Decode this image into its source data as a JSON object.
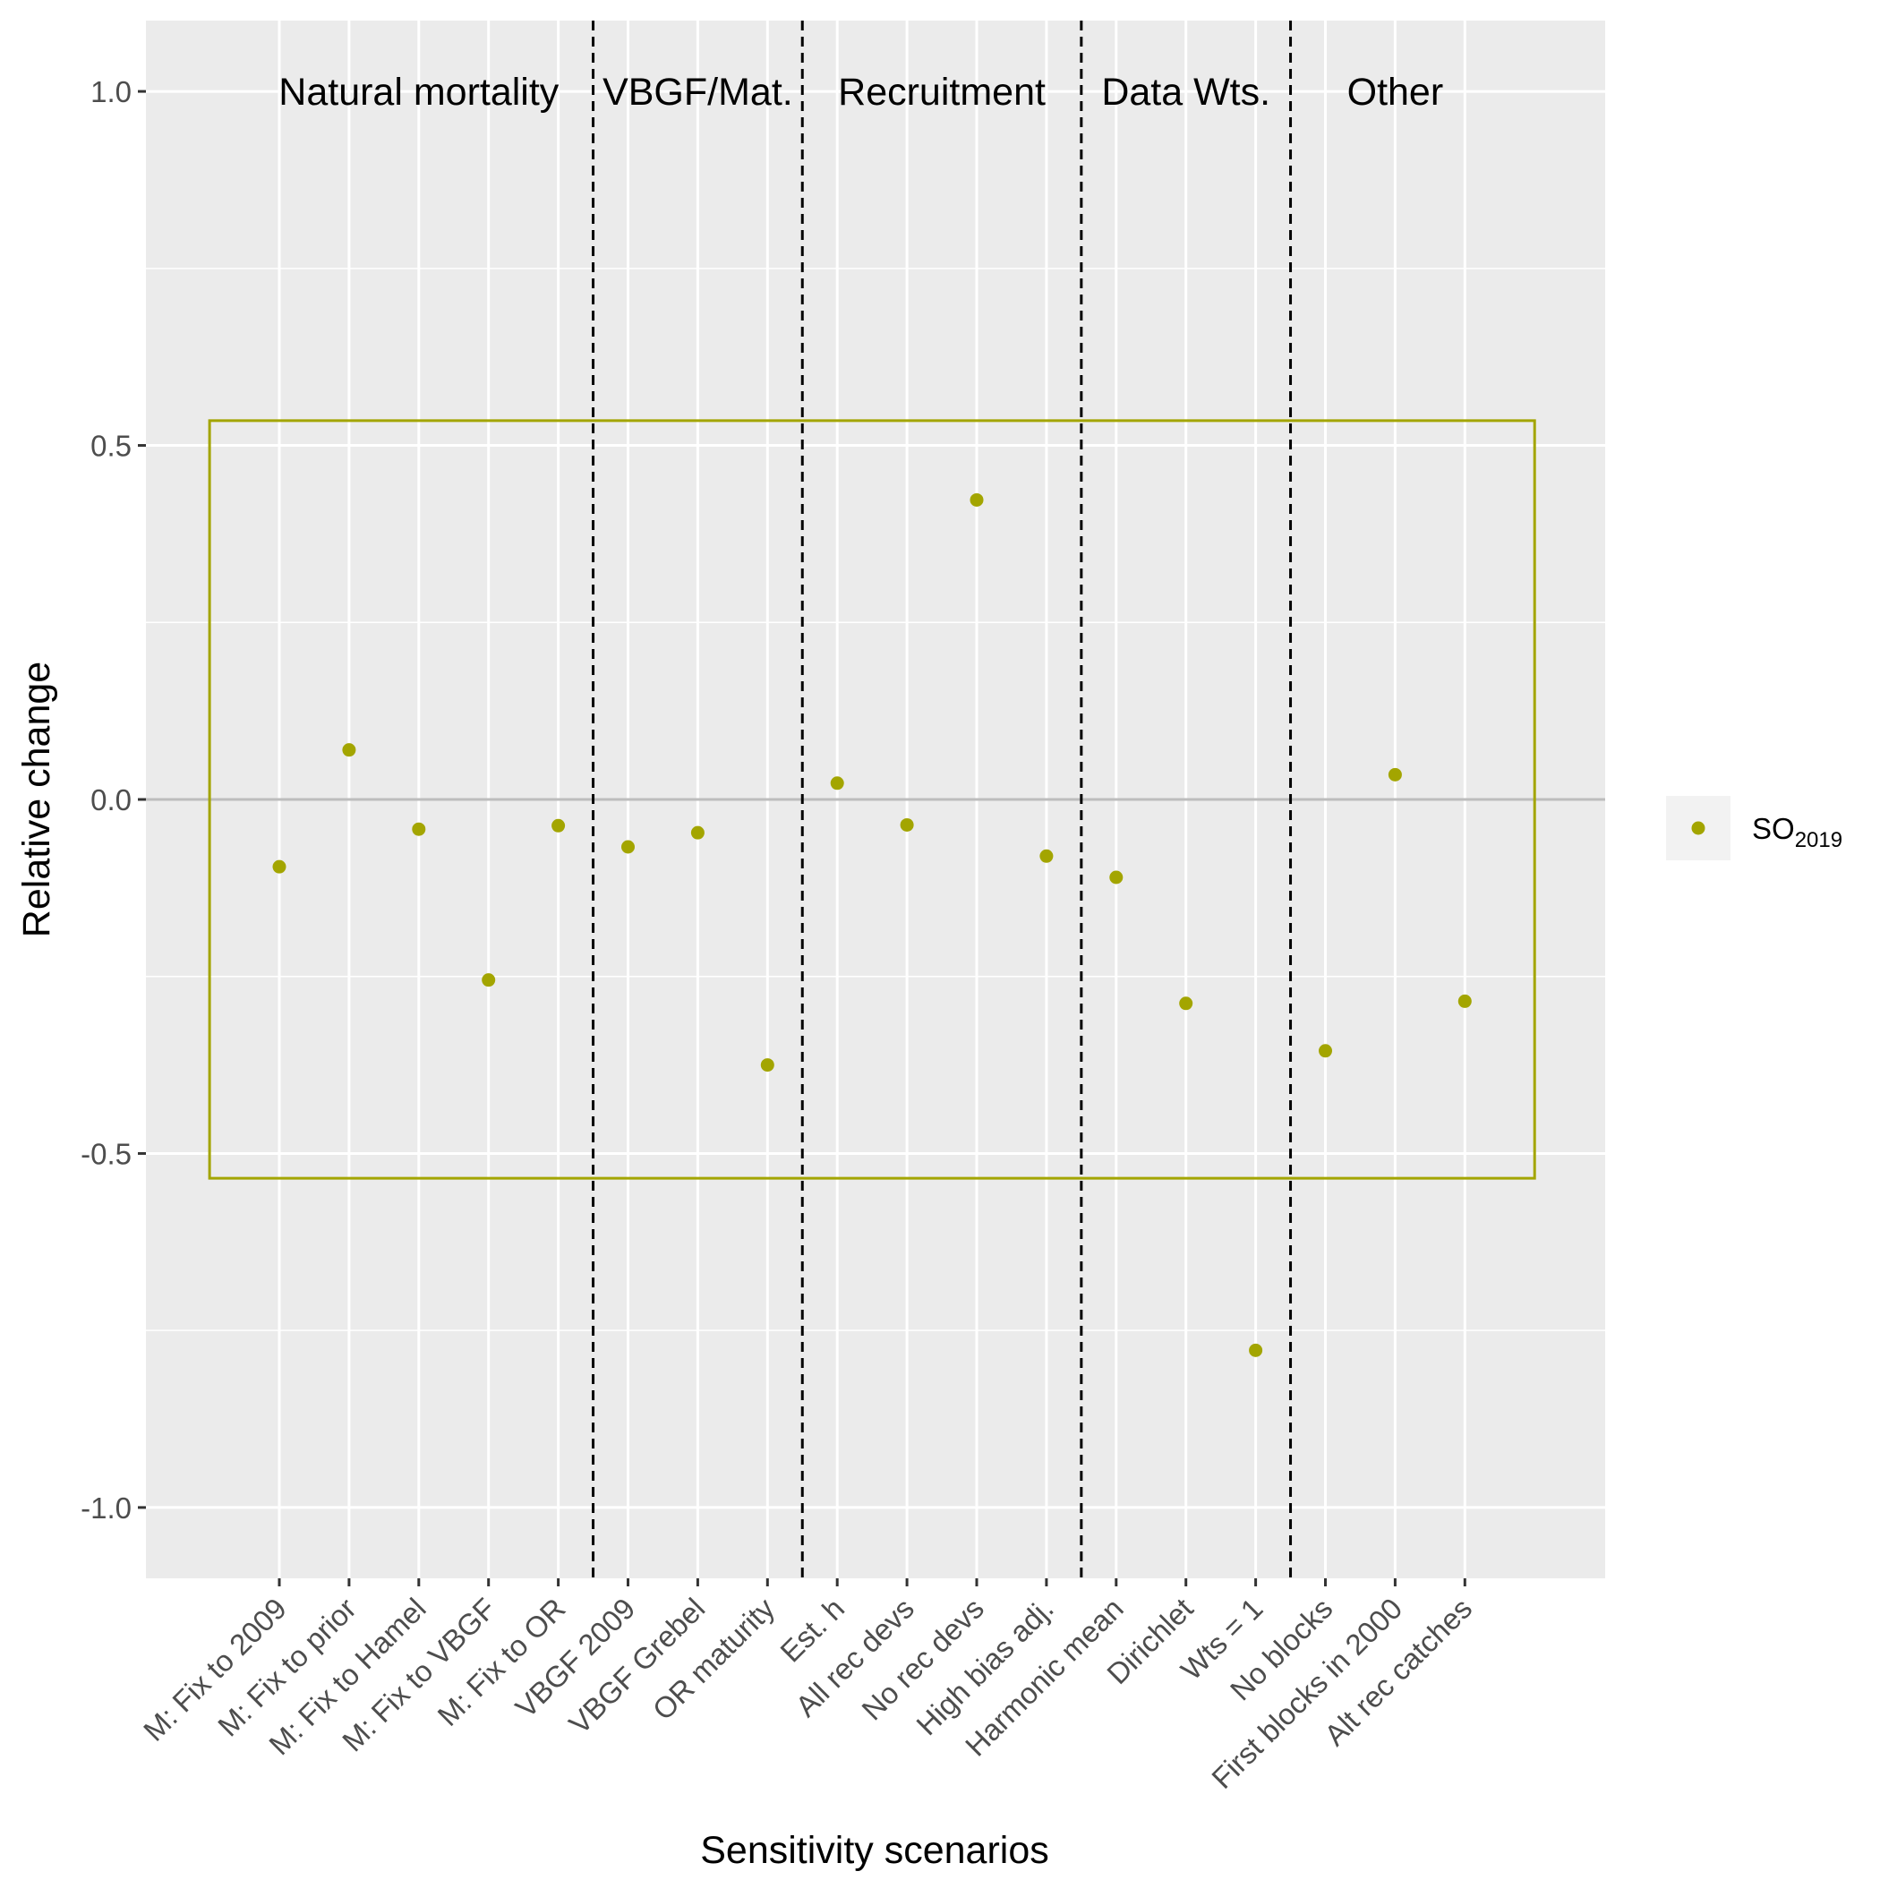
{
  "chart_data": {
    "type": "scatter",
    "xlabel": "Sensitivity scenarios",
    "ylabel": "Relative change",
    "ylim": [
      -1.1,
      1.1
    ],
    "y_ticks": [
      -1.0,
      -0.5,
      0.0,
      0.5,
      1.0
    ],
    "y_tick_labels": [
      "-1.0",
      "-0.5",
      "0.0",
      "0.5",
      "1.0"
    ],
    "grid": true,
    "categories": [
      "M: Fix to 2009",
      "M: Fix to prior",
      "M: Fix to Hamel",
      "M: Fix to VBGF",
      "M: Fix to OR",
      "VBGF 2009",
      "VBGF Grebel",
      "OR maturity",
      "Est. h",
      "All rec devs",
      "No rec devs",
      "High bias adj.",
      "Harmonic mean",
      "Dirichlet",
      "Wts = 1",
      "No blocks",
      "First blocks in 2000",
      "Alt rec catches"
    ],
    "series": [
      {
        "name_main": "SO",
        "name_sub": "2019",
        "color": "#a3a500",
        "values": [
          -0.095,
          0.07,
          -0.042,
          -0.255,
          -0.037,
          -0.067,
          -0.047,
          -0.375,
          0.023,
          -0.036,
          0.423,
          -0.08,
          -0.11,
          -0.288,
          -0.778,
          -0.355,
          0.035,
          -0.285
        ]
      }
    ],
    "groups": [
      {
        "label": "Natural mortality",
        "start": 0,
        "end": 4
      },
      {
        "label": "VBGF/Mat.",
        "start": 5,
        "end": 7
      },
      {
        "label": "Recruitment",
        "start": 8,
        "end": 11
      },
      {
        "label": "Data Wts.",
        "start": 12,
        "end": 14
      },
      {
        "label": "Other",
        "start": 15,
        "end": 17
      }
    ],
    "divider_after": [
      4,
      7,
      11,
      14
    ],
    "reference_box": {
      "ymin": -0.535,
      "ymax": 0.535
    },
    "legend_position": "right"
  },
  "colors": {
    "panel": "#ebebeb",
    "grid": "#ffffff",
    "zero_line": "#bdbdbd",
    "accent": "#a3a500"
  }
}
